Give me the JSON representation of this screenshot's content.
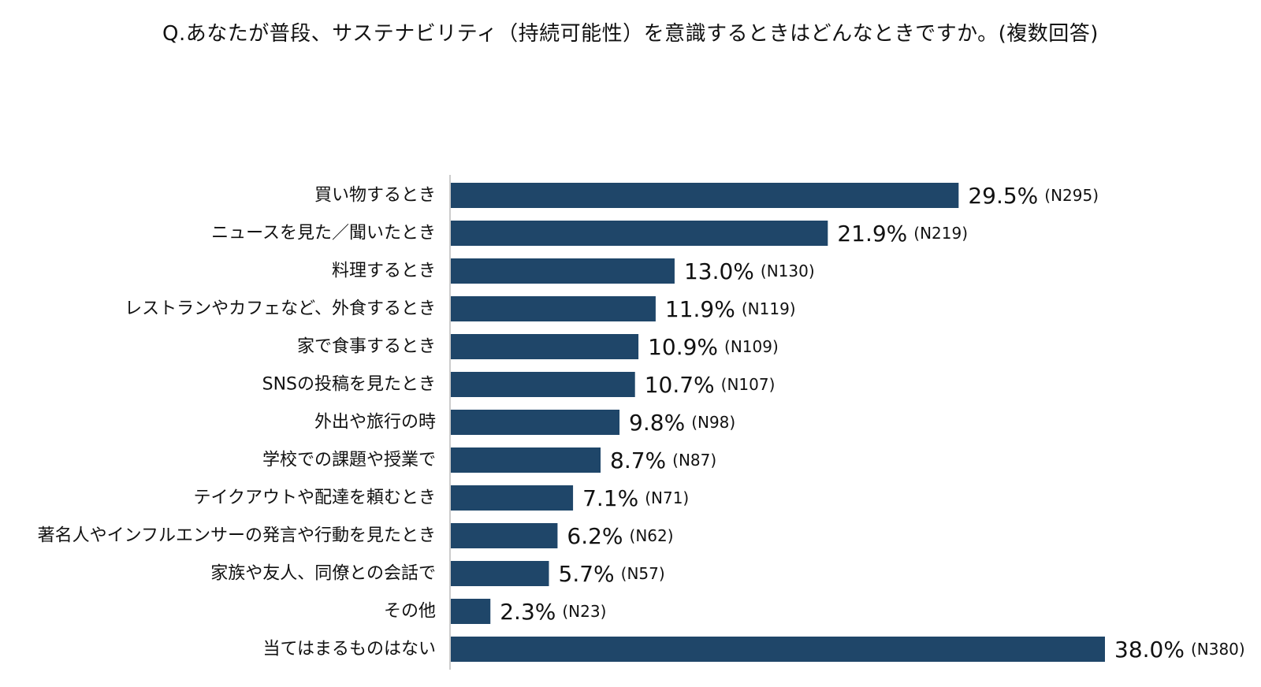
{
  "chart_data": {
    "type": "bar",
    "orientation": "horizontal",
    "title": "Q.あなたが普段、サステナビリティ（持続可能性）を意識するときはどんなときですか。(複数回答)",
    "categories": [
      "買い物するとき",
      "ニュースを見た／聞いたとき",
      "料理するとき",
      "レストランやカフェなど、外食するとき",
      "家で食事するとき",
      "SNSの投稿を見たとき",
      "外出や旅行の時",
      "学校での課題や授業で",
      "テイクアウトや配達を頼むとき",
      "著名人やインフルエンサーの発言や行動を見たとき",
      "家族や友人、同僚との会話で",
      "その他",
      "当てはまるものはない"
    ],
    "values": [
      29.5,
      21.9,
      13.0,
      11.9,
      10.9,
      10.7,
      9.8,
      8.7,
      7.1,
      6.2,
      5.7,
      2.3,
      38.0
    ],
    "value_labels": [
      "29.5%",
      "21.9%",
      "13.0%",
      "11.9%",
      "10.9%",
      "10.7%",
      "9.8%",
      "8.7%",
      "7.1%",
      "6.2%",
      "5.7%",
      "2.3%",
      "38.0%"
    ],
    "counts": [
      "(N295)",
      "(N219)",
      "(N130)",
      "(N119)",
      "(N109)",
      "(N107)",
      "(N98)",
      "(N87)",
      "(N71)",
      "(N62)",
      "(N57)",
      "(N23)",
      "(N380)"
    ],
    "xlim": [
      0,
      38.0
    ],
    "grid": false,
    "legend": "none",
    "bar_color": "#1f4669",
    "axis_color": "#bbbbbb"
  }
}
